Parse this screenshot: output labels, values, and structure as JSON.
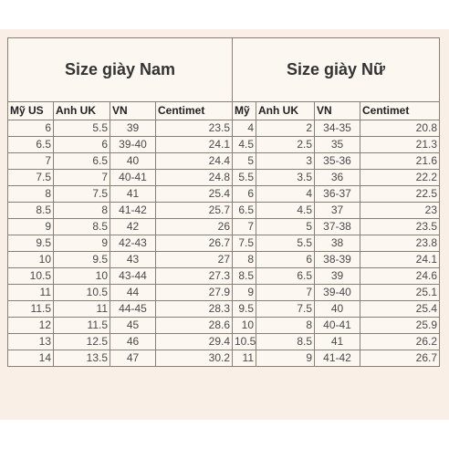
{
  "table": {
    "men_title": "Size giày Nam",
    "women_title": "Size giày Nữ",
    "columns": {
      "men": [
        "Mỹ US",
        "Anh UK",
        "VN",
        "Centimet"
      ],
      "women": [
        "Mỹ",
        "Anh UK",
        "VN",
        "Centimet"
      ]
    },
    "rows": [
      {
        "m_us": "6",
        "m_uk": "5.5",
        "m_vn": "39",
        "m_cm": "23.5",
        "w_us": "4",
        "w_uk": "2",
        "w_vn": "34-35",
        "w_cm": "20.8"
      },
      {
        "m_us": "6.5",
        "m_uk": "6",
        "m_vn": "39-40",
        "m_cm": "24.1",
        "w_us": "4.5",
        "w_uk": "2.5",
        "w_vn": "35",
        "w_cm": "21.3"
      },
      {
        "m_us": "7",
        "m_uk": "6.5",
        "m_vn": "40",
        "m_cm": "24.4",
        "w_us": "5",
        "w_uk": "3",
        "w_vn": "35-36",
        "w_cm": "21.6"
      },
      {
        "m_us": "7.5",
        "m_uk": "7",
        "m_vn": "40-41",
        "m_cm": "24.8",
        "w_us": "5.5",
        "w_uk": "3.5",
        "w_vn": "36",
        "w_cm": "22.2"
      },
      {
        "m_us": "8",
        "m_uk": "7.5",
        "m_vn": "41",
        "m_cm": "25.4",
        "w_us": "6",
        "w_uk": "4",
        "w_vn": "36-37",
        "w_cm": "22.5"
      },
      {
        "m_us": "8.5",
        "m_uk": "8",
        "m_vn": "41-42",
        "m_cm": "25.7",
        "w_us": "6.5",
        "w_uk": "4.5",
        "w_vn": "37",
        "w_cm": "23"
      },
      {
        "m_us": "9",
        "m_uk": "8.5",
        "m_vn": "42",
        "m_cm": "26",
        "w_us": "7",
        "w_uk": "5",
        "w_vn": "37-38",
        "w_cm": "23.5"
      },
      {
        "m_us": "9.5",
        "m_uk": "9",
        "m_vn": "42-43",
        "m_cm": "26.7",
        "w_us": "7.5",
        "w_uk": "5.5",
        "w_vn": "38",
        "w_cm": "23.8"
      },
      {
        "m_us": "10",
        "m_uk": "9.5",
        "m_vn": "43",
        "m_cm": "27",
        "w_us": "8",
        "w_uk": "6",
        "w_vn": "38-39",
        "w_cm": "24.1"
      },
      {
        "m_us": "10.5",
        "m_uk": "10",
        "m_vn": "43-44",
        "m_cm": "27.3",
        "w_us": "8.5",
        "w_uk": "6.5",
        "w_vn": "39",
        "w_cm": "24.6"
      },
      {
        "m_us": "11",
        "m_uk": "10.5",
        "m_vn": "44",
        "m_cm": "27.9",
        "w_us": "9",
        "w_uk": "7",
        "w_vn": "39-40",
        "w_cm": "25.1"
      },
      {
        "m_us": "11.5",
        "m_uk": "11",
        "m_vn": "44-45",
        "m_cm": "28.3",
        "w_us": "9.5",
        "w_uk": "7.5",
        "w_vn": "40",
        "w_cm": "25.4"
      },
      {
        "m_us": "12",
        "m_uk": "11.5",
        "m_vn": "45",
        "m_cm": "28.6",
        "w_us": "10",
        "w_uk": "8",
        "w_vn": "40-41",
        "w_cm": "25.9"
      },
      {
        "m_us": "13",
        "m_uk": "12.5",
        "m_vn": "46",
        "m_cm": "29.4",
        "w_us": "10.5",
        "w_uk": "8.5",
        "w_vn": "41",
        "w_cm": "26.2"
      },
      {
        "m_us": "14",
        "m_uk": "13.5",
        "m_vn": "47",
        "m_cm": "30.2",
        "w_us": "11",
        "w_uk": "9",
        "w_vn": "41-42",
        "w_cm": "26.7"
      }
    ]
  }
}
